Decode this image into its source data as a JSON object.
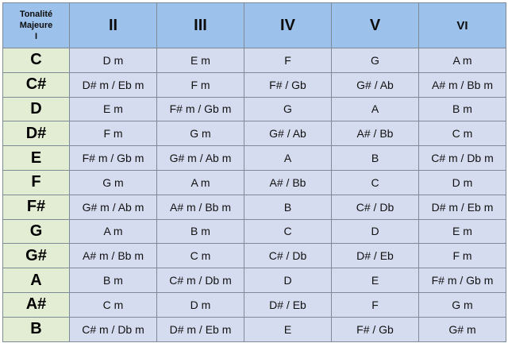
{
  "header": {
    "corner_line1": "Tonalité",
    "corner_line2": "Majeure",
    "corner_line3": "I",
    "degrees": [
      "II",
      "III",
      "IV",
      "V",
      "VI"
    ]
  },
  "rows": [
    {
      "key": "C",
      "cells": [
        "D m",
        "E m",
        "F",
        "G",
        "A m"
      ]
    },
    {
      "key": "C#",
      "cells": [
        "D# m / Eb m",
        "F m",
        "F# / Gb",
        "G# / Ab",
        "A# m / Bb m"
      ]
    },
    {
      "key": "D",
      "cells": [
        "E m",
        "F# m / Gb m",
        "G",
        "A",
        "B m"
      ]
    },
    {
      "key": "D#",
      "cells": [
        "F m",
        "G m",
        "G# / Ab",
        "A# / Bb",
        "C m"
      ]
    },
    {
      "key": "E",
      "cells": [
        "F# m / Gb m",
        "G# m / Ab m",
        "A",
        "B",
        "C# m / Db m"
      ]
    },
    {
      "key": "F",
      "cells": [
        "G m",
        "A m",
        "A# / Bb",
        "C",
        "D m"
      ]
    },
    {
      "key": "F#",
      "cells": [
        "G# m / Ab m",
        "A# m / Bb m",
        "B",
        "C# / Db",
        "D# m / Eb m"
      ]
    },
    {
      "key": "G",
      "cells": [
        "A m",
        "B m",
        "C",
        "D",
        "E m"
      ]
    },
    {
      "key": "G#",
      "cells": [
        "A# m / Bb m",
        "C m",
        "C# / Db",
        "D# / Eb",
        "F m"
      ]
    },
    {
      "key": "A",
      "cells": [
        "B m",
        "C# m / Db m",
        "D",
        "E",
        "F# m / Gb m"
      ]
    },
    {
      "key": "A#",
      "cells": [
        "C m",
        "D m",
        "D# / Eb",
        "F",
        "G m"
      ]
    },
    {
      "key": "B",
      "cells": [
        "C# m / Db m",
        "D# m / Eb m",
        "E",
        "F# / Gb",
        "G# m"
      ]
    }
  ],
  "colors": {
    "header_bg": "#9cc1ea",
    "key_col_bg": "#e3edd4",
    "cell_bg": "#d6dcf0",
    "border": "#7f8a97"
  }
}
